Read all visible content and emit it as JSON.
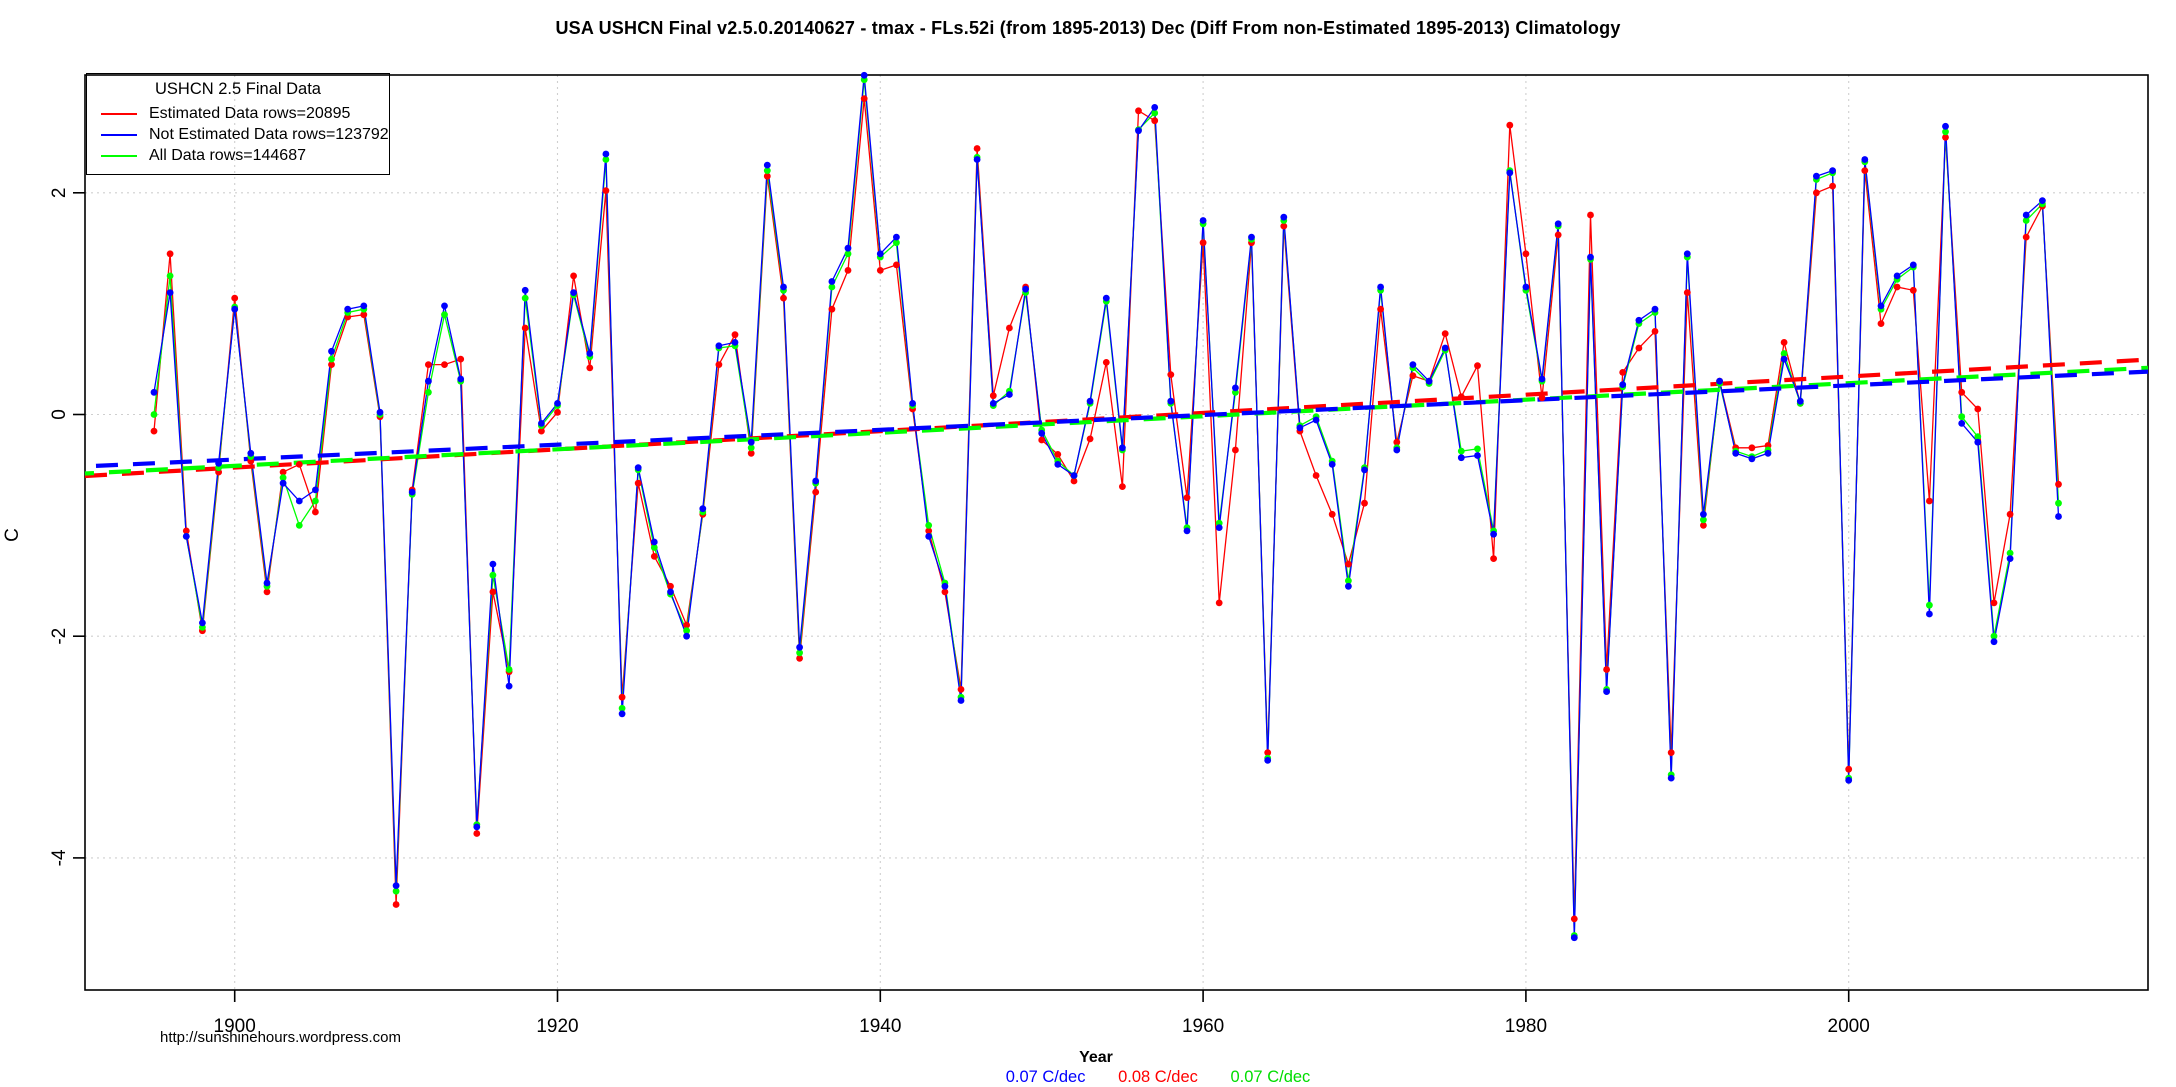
{
  "page": {
    "title": "USA USHCN Final v2.5.0.20140627 - tmax - FLs.52i (from 1895-2013) Dec (Diff From non-Estimated 1895-2013) Climatology"
  },
  "legend": {
    "title": "USHCN 2.5 Final Data",
    "entries": [
      {
        "label": "Estimated Data rows=20895",
        "color": "#FF0000"
      },
      {
        "label": "Not Estimated Data rows=123792",
        "color": "#0000FF"
      },
      {
        "label": "All Data rows=144687",
        "color": "#00FF00"
      }
    ]
  },
  "footer": {
    "url": "http://sunshinehours.wordpress.com",
    "xlabel": "Year",
    "rates": [
      {
        "text": "0.07 C/dec",
        "color": "#0000FF"
      },
      {
        "text": "0.08 C/dec",
        "color": "#FF0000"
      },
      {
        "text": "0.07 C/dec",
        "color": "#00DD00"
      }
    ]
  },
  "chart_data": {
    "type": "line",
    "title": "USA USHCN Final v2.5.0.20140627 - tmax - FLs.52i (from 1895-2013) Dec (Diff From non-Estimated 1895-2013) Climatology",
    "xlabel": "Year",
    "ylabel": "C",
    "x_start": 1895,
    "x_end": 2013,
    "x_ticks": [
      1900,
      1920,
      1940,
      1960,
      1980,
      2000
    ],
    "y_ticks": [
      2,
      0,
      -2,
      -4
    ],
    "ylim": [
      -5.2,
      3.1
    ],
    "grid": true,
    "legend_position": "top-left",
    "marker": "filled-circle",
    "series": [
      {
        "name": "Estimated Data rows=20895",
        "color": "#FF0000",
        "values": [
          -0.15,
          1.45,
          -1.05,
          -1.95,
          -0.52,
          1.05,
          -0.42,
          -1.6,
          -0.52,
          -0.45,
          -0.88,
          0.45,
          0.88,
          0.9,
          -0.02,
          -4.42,
          -0.68,
          0.45,
          0.45,
          0.5,
          -3.78,
          -1.6,
          -2.32,
          0.78,
          -0.15,
          0.02,
          1.25,
          0.42,
          2.02,
          -2.55,
          -0.62,
          -1.28,
          -1.55,
          -1.9,
          -0.9,
          0.45,
          0.72,
          -0.35,
          2.15,
          1.05,
          -2.2,
          -0.7,
          0.95,
          1.3,
          2.85,
          1.3,
          1.35,
          0.05,
          -1.05,
          -1.6,
          -2.48,
          2.4,
          0.17,
          0.78,
          1.15,
          -0.23,
          -0.36,
          -0.6,
          -0.22,
          0.47,
          -0.65,
          2.74,
          2.65,
          0.36,
          -0.75,
          1.55,
          -1.7,
          -0.32,
          1.55,
          -3.05,
          1.7,
          -0.15,
          -0.55,
          -0.9,
          -1.35,
          -0.8,
          0.95,
          -0.25,
          0.35,
          0.3,
          0.73,
          0.16,
          0.44,
          -1.3,
          2.61,
          1.45,
          0.15,
          1.62,
          -4.55,
          1.8,
          -2.3,
          0.38,
          0.6,
          0.75,
          -3.05,
          1.1,
          -1.0,
          0.3,
          -0.3,
          -0.3,
          -0.28,
          0.65,
          0.1,
          2.0,
          2.06,
          -3.2,
          2.2,
          0.82,
          1.15,
          1.12,
          -0.78,
          2.5,
          0.2,
          0.05,
          -1.7,
          -0.9,
          1.6,
          1.88,
          -0.63
        ]
      },
      {
        "name": "All Data rows=144687",
        "color": "#00FF00",
        "values": [
          0.0,
          1.25,
          -1.1,
          -1.92,
          -0.48,
          0.97,
          -0.38,
          -1.55,
          -0.57,
          -1.0,
          -0.78,
          0.5,
          0.92,
          0.95,
          0.0,
          -4.3,
          -0.72,
          0.2,
          0.9,
          0.3,
          -3.7,
          -1.45,
          -2.3,
          1.05,
          -0.1,
          0.08,
          1.08,
          0.52,
          2.3,
          -2.65,
          -0.5,
          -1.2,
          -1.62,
          -1.95,
          -0.88,
          0.6,
          0.62,
          -0.3,
          2.2,
          1.12,
          -2.15,
          -0.62,
          1.15,
          1.45,
          3.02,
          1.42,
          1.55,
          0.08,
          -1.0,
          -1.52,
          -2.55,
          2.32,
          0.08,
          0.21,
          1.1,
          -0.14,
          -0.42,
          -0.55,
          0.1,
          1.02,
          -0.32,
          2.57,
          2.72,
          0.1,
          -1.02,
          1.72,
          -0.98,
          0.2,
          1.58,
          -3.1,
          1.75,
          -0.1,
          -0.02,
          -0.42,
          -1.5,
          -0.48,
          1.12,
          -0.3,
          0.42,
          0.28,
          0.58,
          -0.33,
          -0.31,
          -1.05,
          2.2,
          1.12,
          0.3,
          1.7,
          -4.7,
          1.4,
          -2.48,
          0.25,
          0.82,
          0.92,
          -3.25,
          1.42,
          -0.95,
          0.28,
          -0.33,
          -0.38,
          -0.32,
          0.55,
          0.1,
          2.12,
          2.18,
          -3.28,
          2.28,
          0.95,
          1.22,
          1.33,
          -1.72,
          2.55,
          -0.02,
          -0.2,
          -2.0,
          -1.25,
          1.75,
          1.9,
          -0.8
        ]
      },
      {
        "name": "Not Estimated Data rows=123792",
        "color": "#0000FF",
        "values": [
          0.2,
          1.1,
          -1.1,
          -1.88,
          -0.44,
          0.95,
          -0.35,
          -1.52,
          -0.62,
          -0.78,
          -0.68,
          0.57,
          0.95,
          0.98,
          0.02,
          -4.25,
          -0.7,
          0.3,
          0.98,
          0.32,
          -3.72,
          -1.35,
          -2.45,
          1.12,
          -0.08,
          0.1,
          1.1,
          0.55,
          2.35,
          -2.7,
          -0.48,
          -1.15,
          -1.6,
          -2.0,
          -0.85,
          0.62,
          0.65,
          -0.25,
          2.25,
          1.15,
          -2.1,
          -0.6,
          1.2,
          1.5,
          3.06,
          1.45,
          1.6,
          0.1,
          -1.1,
          -1.55,
          -2.58,
          2.3,
          0.1,
          0.18,
          1.13,
          -0.17,
          -0.45,
          -0.55,
          0.12,
          1.05,
          -0.3,
          2.56,
          2.77,
          0.12,
          -1.05,
          1.75,
          -1.02,
          0.24,
          1.6,
          -3.12,
          1.78,
          -0.12,
          -0.05,
          -0.45,
          -1.55,
          -0.5,
          1.15,
          -0.32,
          0.45,
          0.3,
          0.6,
          -0.39,
          -0.37,
          -1.08,
          2.18,
          1.15,
          0.32,
          1.72,
          -4.72,
          1.42,
          -2.5,
          0.27,
          0.85,
          0.95,
          -3.28,
          1.45,
          -0.9,
          0.3,
          -0.35,
          -0.4,
          -0.35,
          0.5,
          0.12,
          2.15,
          2.2,
          -3.3,
          2.3,
          0.98,
          1.25,
          1.35,
          -1.8,
          2.6,
          -0.08,
          -0.25,
          -2.05,
          -1.3,
          1.8,
          1.93,
          -0.92
        ]
      }
    ],
    "trend_lines": [
      {
        "name": "Estimated trend",
        "color": "#FF0000",
        "start_value": -0.52,
        "end_value": 0.45,
        "rate_label": "0.08 C/dec"
      },
      {
        "name": "All trend",
        "color": "#00FF00",
        "start_value": -0.5,
        "end_value": 0.38,
        "rate_label": "0.07 C/dec"
      },
      {
        "name": "Not Estimated trend",
        "color": "#0000FF",
        "start_value": -0.44,
        "end_value": 0.35,
        "rate_label": "0.07 C/dec"
      }
    ]
  }
}
